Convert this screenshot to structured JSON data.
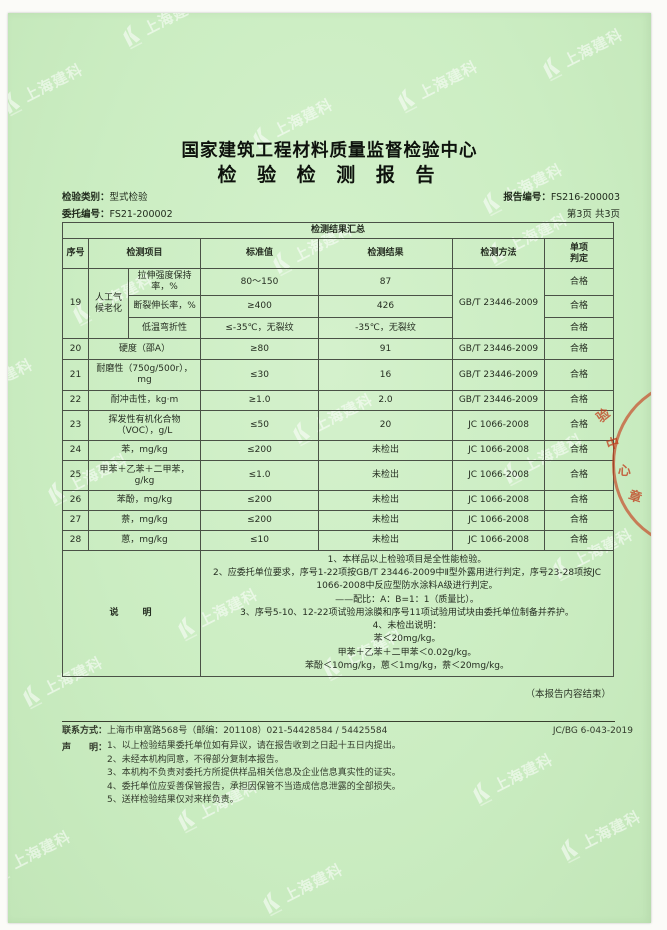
{
  "header": {
    "title": "国家建筑工程材料质量监督检验中心",
    "subtitle": "检 验 检 测 报 告",
    "category_label": "检验类别：",
    "category_value": "型式检验",
    "commission_label": "委托编号：",
    "commission_value": "FS21-200002",
    "report_label": "报告编号：",
    "report_value": "FS216-200003",
    "page_info": "第3页 共3页"
  },
  "watermark": {
    "text": "上海建科"
  },
  "stamp": {
    "visible_text": "验中心章",
    "color": "#c23a1a"
  },
  "table": {
    "caption": "检测结果汇总",
    "col_headers": {
      "no": "序号",
      "item": "检测项目",
      "standard": "标准值",
      "result": "检测结果",
      "method": "检测方法",
      "verdict_line1": "单项",
      "verdict_line2": "判定"
    },
    "row19": {
      "no": "19",
      "group": "人工气候老化",
      "method": "GB/T 23446-2009",
      "sub1": {
        "item": "拉伸强度保持率，%",
        "standard": "80～150",
        "result": "87",
        "verdict": "合格"
      },
      "sub2": {
        "item": "断裂伸长率，%",
        "standard": "≥400",
        "result": "426",
        "verdict": "合格"
      },
      "sub3": {
        "item": "低温弯折性",
        "standard": "≤-35℃，无裂纹",
        "result": "-35℃，无裂纹",
        "verdict": "合格"
      }
    },
    "rows": [
      {
        "no": "20",
        "item": "硬度（邵A）",
        "standard": "≥80",
        "result": "91",
        "method": "GB/T 23446-2009",
        "verdict": "合格"
      },
      {
        "no": "21",
        "item": "耐磨性（750g/500r），mg",
        "standard": "≤30",
        "result": "16",
        "method": "GB/T 23446-2009",
        "verdict": "合格"
      },
      {
        "no": "22",
        "item": "耐冲击性，kg·m",
        "standard": "≥1.0",
        "result": "2.0",
        "method": "GB/T 23446-2009",
        "verdict": "合格"
      },
      {
        "no": "23",
        "item": "挥发性有机化合物（VOC），g/L",
        "standard": "≤50",
        "result": "20",
        "method": "JC 1066-2008",
        "verdict": "合格"
      },
      {
        "no": "24",
        "item": "苯，mg/kg",
        "standard": "≤200",
        "result": "未检出",
        "method": "JC 1066-2008",
        "verdict": "合格"
      },
      {
        "no": "25",
        "item": "甲苯＋乙苯＋二甲苯，g/kg",
        "standard": "≤1.0",
        "result": "未检出",
        "method": "JC 1066-2008",
        "verdict": "合格"
      },
      {
        "no": "26",
        "item": "苯酚，mg/kg",
        "standard": "≤200",
        "result": "未检出",
        "method": "JC 1066-2008",
        "verdict": "合格"
      },
      {
        "no": "27",
        "item": "萘，mg/kg",
        "standard": "≤200",
        "result": "未检出",
        "method": "JC 1066-2008",
        "verdict": "合格"
      },
      {
        "no": "28",
        "item": "蒽，mg/kg",
        "standard": "≤10",
        "result": "未检出",
        "method": "JC 1066-2008",
        "verdict": "合格"
      }
    ],
    "notes_label": "说　　明",
    "notes": [
      "1、本样品以上检验项目是全性能检验。",
      "2、应委托单位要求，序号1-22项按GB/T 23446-2009中Ⅱ型外露用进行判定，序号23-28项按JC 1066-2008中反应型防水涂料A级进行判定。",
      "——配比：A：B=1：1（质量比）。",
      "3、序号5-10、12-22项试验用涂膜和序号11项试验用试块由委托单位制备并养护。",
      "4、未检出说明：",
      "苯＜20mg/kg。",
      "甲苯＋乙苯＋二甲苯＜0.02g/kg。",
      "苯酚＜10mg/kg，蒽＜1mg/kg，萘＜20mg/kg。"
    ]
  },
  "footer": {
    "end_note": "（本报告内容结束）",
    "contact_label": "联系方式：",
    "contact_value": "上海市申富路568号（邮编：201108）021-54428584 / 54425584",
    "doc_code": "JC/BG 6-043-2019",
    "statement_label": "声　　明：",
    "statements": [
      "1、以上检验结果委托单位如有异议，请在报告收到之日起十五日内提出。",
      "2、未经本机构同意，不得部分复制本报告。",
      "3、本机构不负责对委托方所提供样品相关信息及企业信息真实性的证实。",
      "4、委托单位应妥善保管报告，承担因保管不当造成信息泄露的全部损失。",
      "5、送样检验结果仅对来样负责。"
    ]
  }
}
